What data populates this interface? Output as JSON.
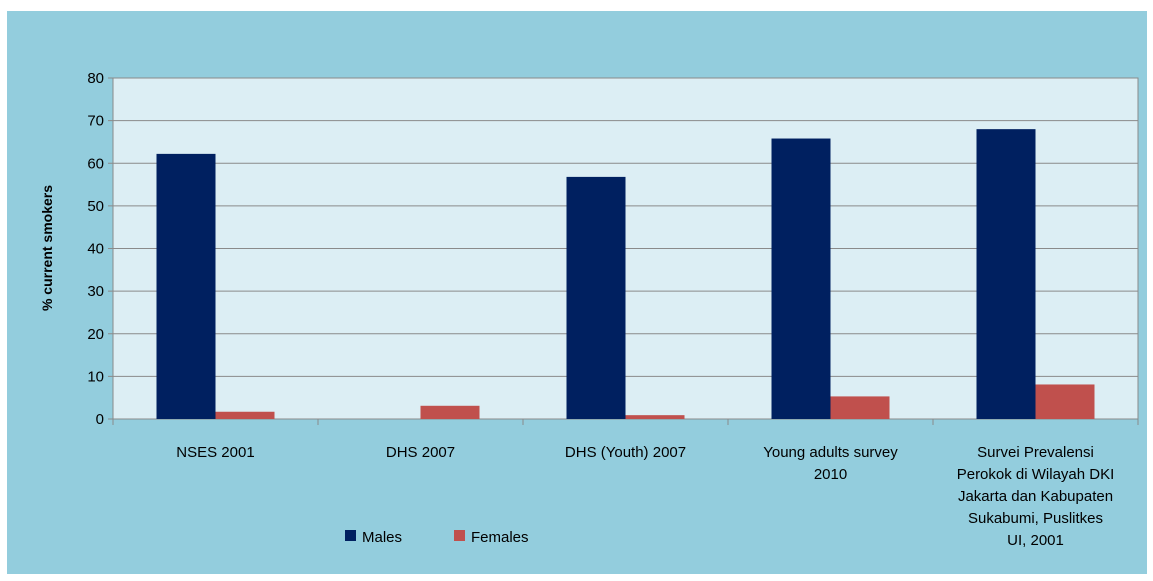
{
  "chart_data": {
    "type": "bar",
    "title": "",
    "xlabel": "",
    "ylabel": "% current smokers",
    "ylim": [
      0,
      80
    ],
    "yticks": [
      0,
      10,
      20,
      30,
      40,
      50,
      60,
      70,
      80
    ],
    "grid": true,
    "legend_position": "bottom-left",
    "categories": [
      [
        "NSES 2001"
      ],
      [
        "DHS 2007"
      ],
      [
        "DHS (Youth) 2007"
      ],
      [
        "Young adults survey",
        "2010"
      ],
      [
        "Survei Prevalensi",
        "Perokok di Wilayah DKI",
        "Jakarta dan Kabupaten",
        "Sukabumi, Puslitkes",
        "UI, 2001"
      ]
    ],
    "series": [
      {
        "name": "Males",
        "color": "#002060",
        "values": [
          62.2,
          null,
          56.8,
          65.8,
          68.0
        ]
      },
      {
        "name": "Females",
        "color": "#C0504D",
        "values": [
          1.7,
          3.1,
          0.9,
          5.3,
          8.1
        ]
      }
    ]
  }
}
